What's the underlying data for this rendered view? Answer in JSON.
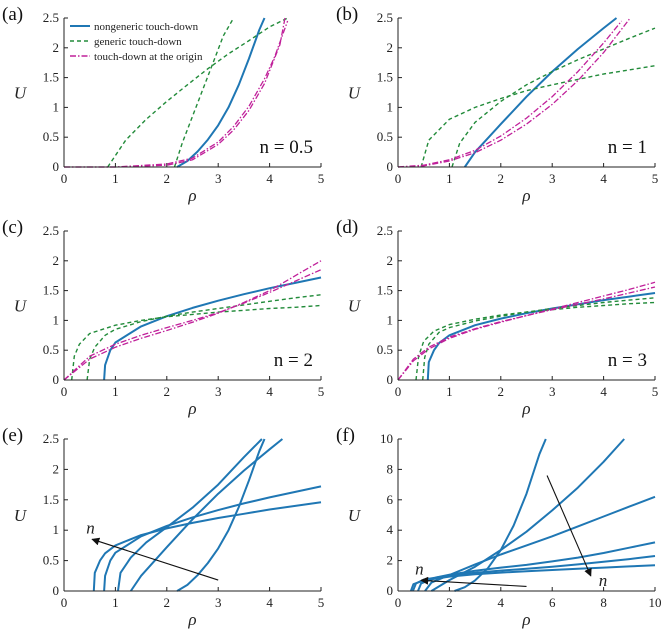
{
  "colors": {
    "nongeneric": "#1f77b4",
    "generic": "#228b3a",
    "origin": "#c0209a"
  },
  "legend": [
    {
      "label": "nongeneric touch-down",
      "style": "solid",
      "color": "#1f77b4"
    },
    {
      "label": "generic touch-down",
      "style": "dashed",
      "color": "#228b3a"
    },
    {
      "label": "touch-down at the origin",
      "style": "dashdot",
      "color": "#c0209a"
    }
  ],
  "chart_data": [
    {
      "panel": "(a)",
      "type": "line",
      "annotation": "n = 0.5",
      "xlabel": "ρ",
      "ylabel": "U",
      "xlim": [
        0,
        5
      ],
      "ylim": [
        0,
        2.5
      ],
      "xticks": [
        "0",
        "1",
        "2",
        "3",
        "4",
        "5"
      ],
      "yticks": [
        "0",
        "0.5",
        "1",
        "1.5",
        "2",
        "2.5"
      ],
      "series": [
        {
          "kind": "nongeneric",
          "x": [
            2.2,
            2.4,
            2.6,
            2.8,
            3.0,
            3.2,
            3.4,
            3.6,
            3.8,
            3.9
          ],
          "y": [
            0,
            0.1,
            0.26,
            0.46,
            0.7,
            1.0,
            1.38,
            1.82,
            2.3,
            2.5
          ]
        },
        {
          "kind": "generic",
          "x": [
            0.85,
            1.2,
            1.6,
            2.0,
            2.4,
            2.8,
            3.2,
            3.6,
            4.0,
            4.35
          ],
          "y": [
            0,
            0.45,
            0.8,
            1.1,
            1.38,
            1.65,
            1.9,
            2.12,
            2.35,
            2.5
          ]
        },
        {
          "kind": "generic",
          "x": [
            2.15,
            2.3,
            2.5,
            2.7,
            2.9,
            3.1,
            3.3
          ],
          "y": [
            0,
            0.4,
            0.85,
            1.3,
            1.75,
            2.2,
            2.5
          ]
        },
        {
          "kind": "origin",
          "x": [
            0,
            1.0,
            2.0,
            2.5,
            3.0,
            3.3,
            3.6,
            3.9,
            4.2,
            4.3
          ],
          "y": [
            0,
            0,
            0.03,
            0.12,
            0.38,
            0.62,
            0.95,
            1.4,
            2.05,
            2.5
          ]
        },
        {
          "kind": "origin",
          "x": [
            0,
            1.0,
            2.0,
            2.5,
            3.0,
            3.3,
            3.6,
            3.9,
            4.1,
            4.35
          ],
          "y": [
            0,
            0,
            0.05,
            0.15,
            0.42,
            0.68,
            1.02,
            1.48,
            1.85,
            2.45
          ]
        }
      ]
    },
    {
      "panel": "(b)",
      "type": "line",
      "annotation": "n = 1",
      "xlabel": "ρ",
      "ylabel": "U",
      "xlim": [
        0,
        5
      ],
      "ylim": [
        0,
        2.5
      ],
      "xticks": [
        "0",
        "1",
        "2",
        "3",
        "4",
        "5"
      ],
      "yticks": [
        "0",
        "0.5",
        "1",
        "1.5",
        "2",
        "2.5"
      ],
      "series": [
        {
          "kind": "nongeneric",
          "x": [
            1.3,
            1.5,
            2.0,
            2.5,
            3.0,
            3.5,
            4.0,
            4.25
          ],
          "y": [
            0,
            0.25,
            0.72,
            1.18,
            1.6,
            1.98,
            2.33,
            2.5
          ]
        },
        {
          "kind": "generic",
          "x": [
            0.45,
            0.6,
            1.0,
            1.5,
            2.0,
            2.5,
            3.0,
            3.5,
            4.0,
            4.5,
            5.0
          ],
          "y": [
            0,
            0.45,
            0.8,
            1.0,
            1.15,
            1.28,
            1.38,
            1.47,
            1.56,
            1.63,
            1.7
          ]
        },
        {
          "kind": "generic",
          "x": [
            1.05,
            1.2,
            1.5,
            2.0,
            2.5,
            3.0,
            3.5,
            4.0,
            4.5,
            5.0
          ],
          "y": [
            0,
            0.4,
            0.75,
            1.1,
            1.38,
            1.6,
            1.8,
            1.98,
            2.16,
            2.33
          ]
        },
        {
          "kind": "origin",
          "x": [
            0,
            0.5,
            1.0,
            1.5,
            2.0,
            2.5,
            3.0,
            3.5,
            4.0,
            4.35
          ],
          "y": [
            0,
            0.03,
            0.12,
            0.28,
            0.52,
            0.82,
            1.18,
            1.6,
            2.08,
            2.45
          ]
        },
        {
          "kind": "origin",
          "x": [
            0,
            0.5,
            1.0,
            1.5,
            2.0,
            2.5,
            3.0,
            3.5,
            4.0,
            4.5
          ],
          "y": [
            0,
            0.02,
            0.1,
            0.24,
            0.45,
            0.72,
            1.05,
            1.45,
            1.92,
            2.48
          ]
        }
      ]
    },
    {
      "panel": "(c)",
      "type": "line",
      "annotation": "n = 2",
      "xlabel": "ρ",
      "ylabel": "U",
      "xlim": [
        0,
        5
      ],
      "ylim": [
        0,
        2.5
      ],
      "xticks": [
        "0",
        "1",
        "2",
        "3",
        "4",
        "5"
      ],
      "yticks": [
        "0",
        "0.5",
        "1",
        "1.5",
        "2",
        "2.5"
      ],
      "series": [
        {
          "kind": "nongeneric",
          "x": [
            0.78,
            0.8,
            0.9,
            1.0,
            1.5,
            2.0,
            2.5,
            3.0,
            3.5,
            4.0,
            4.5,
            5.0
          ],
          "y": [
            0,
            0.25,
            0.5,
            0.63,
            0.9,
            1.07,
            1.21,
            1.33,
            1.44,
            1.54,
            1.63,
            1.72
          ]
        },
        {
          "kind": "generic",
          "x": [
            0.15,
            0.2,
            0.3,
            0.5,
            1.0,
            1.5,
            2.0,
            2.5,
            3.0,
            3.5,
            4.0,
            4.5,
            5.0
          ],
          "y": [
            0,
            0.4,
            0.6,
            0.78,
            0.92,
            1.0,
            1.06,
            1.1,
            1.14,
            1.17,
            1.2,
            1.22,
            1.25
          ]
        },
        {
          "kind": "generic",
          "x": [
            0.45,
            0.5,
            0.6,
            0.8,
            1.0,
            1.5,
            2.0,
            2.5,
            3.0,
            3.5,
            4.0,
            4.5,
            5.0
          ],
          "y": [
            0,
            0.35,
            0.55,
            0.75,
            0.85,
            0.98,
            1.07,
            1.14,
            1.2,
            1.26,
            1.32,
            1.38,
            1.43
          ]
        },
        {
          "kind": "origin",
          "x": [
            0,
            0.5,
            1.0,
            1.5,
            2.0,
            2.5,
            3.0,
            3.5,
            4.0,
            4.5,
            5.0
          ],
          "y": [
            0,
            0.4,
            0.6,
            0.75,
            0.88,
            1.0,
            1.13,
            1.29,
            1.47,
            1.66,
            1.85
          ]
        },
        {
          "kind": "origin",
          "x": [
            0,
            0.5,
            1.0,
            1.5,
            2.0,
            2.5,
            3.0,
            3.5,
            4.0,
            4.5,
            5.0
          ],
          "y": [
            0,
            0.35,
            0.55,
            0.7,
            0.83,
            0.97,
            1.12,
            1.3,
            1.5,
            1.75,
            2.0
          ]
        }
      ]
    },
    {
      "panel": "(d)",
      "type": "line",
      "annotation": "n = 3",
      "xlabel": "ρ",
      "ylabel": "U",
      "xlim": [
        0,
        5
      ],
      "ylim": [
        0,
        2.5
      ],
      "xticks": [
        "0",
        "1",
        "2",
        "3",
        "4",
        "5"
      ],
      "yticks": [
        "0",
        "0.5",
        "1",
        "1.5",
        "2",
        "2.5"
      ],
      "series": [
        {
          "kind": "nongeneric",
          "x": [
            0.58,
            0.6,
            0.7,
            0.8,
            1.0,
            1.5,
            2.0,
            2.5,
            3.0,
            3.5,
            4.0,
            4.5,
            5.0
          ],
          "y": [
            0,
            0.3,
            0.5,
            0.62,
            0.75,
            0.92,
            1.03,
            1.12,
            1.2,
            1.27,
            1.34,
            1.4,
            1.46
          ]
        },
        {
          "kind": "generic",
          "x": [
            0.35,
            0.4,
            0.5,
            0.7,
            1.0,
            1.5,
            2.0,
            2.5,
            3.0,
            3.5,
            4.0,
            4.5,
            5.0
          ],
          "y": [
            0,
            0.4,
            0.65,
            0.82,
            0.93,
            1.02,
            1.09,
            1.14,
            1.18,
            1.22,
            1.25,
            1.28,
            1.3
          ]
        },
        {
          "kind": "generic",
          "x": [
            0.48,
            0.52,
            0.6,
            0.8,
            1.0,
            1.5,
            2.0,
            2.5,
            3.0,
            3.5,
            4.0,
            4.5,
            5.0
          ],
          "y": [
            0,
            0.38,
            0.6,
            0.8,
            0.88,
            0.99,
            1.07,
            1.14,
            1.2,
            1.25,
            1.3,
            1.34,
            1.38
          ]
        },
        {
          "kind": "origin",
          "x": [
            0,
            0.3,
            0.6,
            1.0,
            1.5,
            2.0,
            2.5,
            3.0,
            3.5,
            4.0,
            4.5,
            5.0
          ],
          "y": [
            0,
            0.35,
            0.55,
            0.72,
            0.86,
            0.98,
            1.08,
            1.18,
            1.27,
            1.36,
            1.46,
            1.56
          ]
        },
        {
          "kind": "origin",
          "x": [
            0,
            0.3,
            0.6,
            1.0,
            1.5,
            2.0,
            2.5,
            3.0,
            3.5,
            4.0,
            4.5,
            5.0
          ],
          "y": [
            0,
            0.32,
            0.52,
            0.7,
            0.85,
            0.97,
            1.08,
            1.19,
            1.3,
            1.41,
            1.52,
            1.64
          ]
        }
      ]
    },
    {
      "panel": "(e)",
      "type": "line",
      "xlabel": "ρ",
      "ylabel": "U",
      "xlim": [
        0,
        5
      ],
      "ylim": [
        0,
        2.5
      ],
      "xticks": [
        "0",
        "1",
        "2",
        "3",
        "4",
        "5"
      ],
      "yticks": [
        "0",
        "0.5",
        "1",
        "1.5",
        "2",
        "2.5"
      ],
      "arrow": {
        "label": "n",
        "from": [
          3.0,
          0.18
        ],
        "to": [
          0.55,
          0.85
        ]
      },
      "series": [
        {
          "x": [
            2.2,
            2.4,
            2.6,
            2.8,
            3.0,
            3.2,
            3.4,
            3.6,
            3.8,
            3.9
          ],
          "y": [
            0,
            0.1,
            0.26,
            0.46,
            0.7,
            1.0,
            1.38,
            1.82,
            2.3,
            2.5
          ]
        },
        {
          "x": [
            1.3,
            1.5,
            2.0,
            2.5,
            3.0,
            3.5,
            4.0,
            4.25
          ],
          "y": [
            0,
            0.25,
            0.72,
            1.18,
            1.6,
            1.98,
            2.33,
            2.5
          ]
        },
        {
          "x": [
            1.05,
            1.1,
            1.3,
            1.6,
            2.0,
            2.5,
            3.0,
            3.5,
            3.85
          ],
          "y": [
            0,
            0.3,
            0.55,
            0.8,
            1.05,
            1.37,
            1.75,
            2.2,
            2.5
          ]
        },
        {
          "x": [
            0.78,
            0.8,
            0.9,
            1.0,
            1.5,
            2.0,
            2.5,
            3.0,
            3.5,
            4.0,
            4.5,
            5.0
          ],
          "y": [
            0,
            0.25,
            0.5,
            0.63,
            0.9,
            1.07,
            1.21,
            1.33,
            1.44,
            1.54,
            1.63,
            1.72
          ]
        },
        {
          "x": [
            0.58,
            0.6,
            0.7,
            0.8,
            1.0,
            1.5,
            2.0,
            2.5,
            3.0,
            3.5,
            4.0,
            4.5,
            5.0
          ],
          "y": [
            0,
            0.3,
            0.5,
            0.62,
            0.75,
            0.92,
            1.03,
            1.12,
            1.2,
            1.27,
            1.34,
            1.4,
            1.46
          ]
        }
      ]
    },
    {
      "panel": "(f)",
      "type": "line",
      "xlabel": "ρ",
      "ylabel": "U",
      "xlim": [
        0,
        10
      ],
      "ylim": [
        0,
        10
      ],
      "xticks": [
        "0",
        "2",
        "4",
        "6",
        "8",
        "10"
      ],
      "yticks": [
        "0",
        "2",
        "4",
        "6",
        "8",
        "10"
      ],
      "arrows": [
        {
          "label": "n",
          "from": [
            5.0,
            0.3
          ],
          "to": [
            0.9,
            0.7
          ]
        },
        {
          "label": "n",
          "from": [
            5.8,
            7.6
          ],
          "to": [
            7.5,
            1.0
          ]
        }
      ],
      "series": [
        {
          "x": [
            2.2,
            2.6,
            3.0,
            3.5,
            4.0,
            4.5,
            5.0,
            5.5,
            5.75
          ],
          "y": [
            0,
            0.25,
            0.7,
            1.5,
            2.7,
            4.3,
            6.4,
            9.0,
            10.0
          ]
        },
        {
          "x": [
            1.3,
            2.0,
            3.0,
            4.0,
            5.0,
            6.0,
            7.0,
            8.0,
            8.8
          ],
          "y": [
            0,
            0.72,
            1.6,
            2.7,
            3.9,
            5.3,
            6.8,
            8.5,
            10.0
          ]
        },
        {
          "x": [
            1.05,
            1.3,
            2.0,
            3.0,
            4.0,
            5.0,
            6.0,
            7.0,
            8.0,
            9.0,
            10.0
          ],
          "y": [
            0,
            0.55,
            1.05,
            1.75,
            2.4,
            3.0,
            3.6,
            4.25,
            4.9,
            5.55,
            6.2
          ]
        },
        {
          "x": [
            0.78,
            0.9,
            1.5,
            2.0,
            3.0,
            4.0,
            5.0,
            6.0,
            7.0,
            8.0,
            9.0,
            10.0
          ],
          "y": [
            0,
            0.5,
            0.9,
            1.07,
            1.33,
            1.54,
            1.72,
            1.95,
            2.2,
            2.5,
            2.85,
            3.2
          ]
        },
        {
          "x": [
            0.58,
            0.7,
            1.0,
            2.0,
            3.0,
            4.0,
            5.0,
            6.0,
            7.0,
            8.0,
            9.0,
            10.0
          ],
          "y": [
            0,
            0.5,
            0.75,
            1.03,
            1.2,
            1.34,
            1.46,
            1.6,
            1.75,
            1.92,
            2.1,
            2.3
          ]
        },
        {
          "x": [
            0.5,
            0.6,
            1.0,
            2.0,
            3.0,
            4.0,
            5.0,
            6.0,
            7.0,
            8.0,
            9.0,
            10.0
          ],
          "y": [
            0,
            0.45,
            0.7,
            0.95,
            1.1,
            1.21,
            1.3,
            1.38,
            1.46,
            1.54,
            1.62,
            1.7
          ]
        }
      ]
    }
  ]
}
